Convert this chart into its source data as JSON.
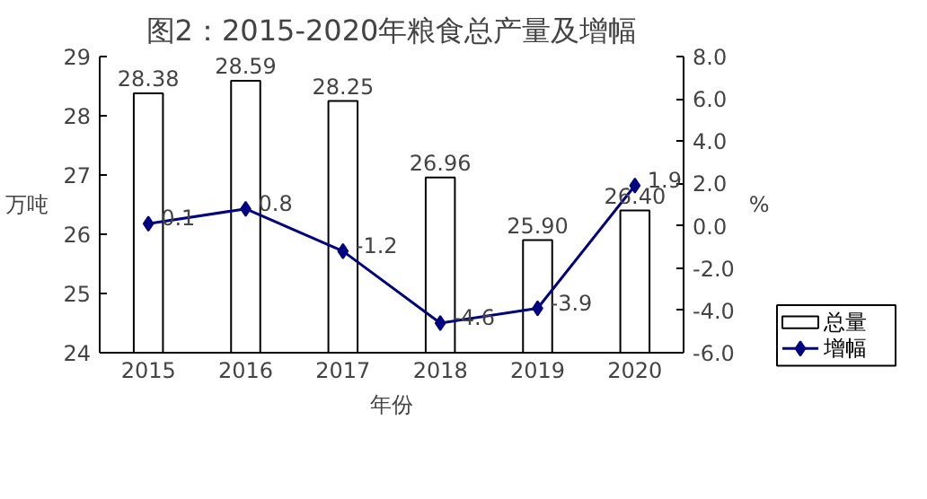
{
  "chart_data": {
    "type": "bar",
    "title": "图2：2015-2020年粮食总产量及增幅",
    "categories": [
      "2015",
      "2016",
      "2017",
      "2018",
      "2019",
      "2020"
    ],
    "xlabel": "年份",
    "ylabel": "万吨",
    "y2label": "%",
    "ylim": [
      24,
      29
    ],
    "yticks": [
      24,
      25,
      26,
      27,
      28,
      29
    ],
    "y2lim": [
      -6,
      8
    ],
    "y2ticks": [
      {
        "value": -6,
        "label": "-6.0"
      },
      {
        "value": -4,
        "label": "-4.0"
      },
      {
        "value": -2,
        "label": "-2.0"
      },
      {
        "value": 0,
        "label": "0.0"
      },
      {
        "value": 2,
        "label": "2.0"
      },
      {
        "value": 4,
        "label": "4.0"
      },
      {
        "value": 6,
        "label": "6.0"
      },
      {
        "value": 8,
        "label": "8.0"
      }
    ],
    "series": [
      {
        "name": "总量",
        "type": "bar",
        "color": "#ffffff",
        "values": [
          28.38,
          28.59,
          28.25,
          26.96,
          25.9,
          26.4
        ],
        "value_labels": [
          "28.38",
          "28.59",
          "28.25",
          "26.96",
          "25.90",
          "26.40"
        ]
      },
      {
        "name": "增幅",
        "type": "line",
        "axis": "y2",
        "color": "#000080",
        "marker": "diamond",
        "values": [
          0.1,
          0.8,
          -1.2,
          -4.6,
          -3.9,
          1.9
        ],
        "value_labels": [
          "0.1",
          "0.8",
          "-1.2",
          "-4.6",
          "-3.9",
          "1.9"
        ]
      }
    ],
    "grid": false,
    "legend": "bottom right"
  }
}
